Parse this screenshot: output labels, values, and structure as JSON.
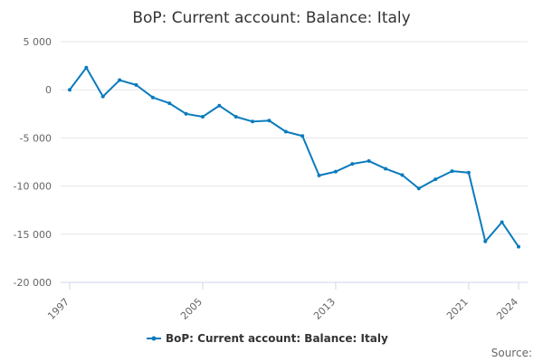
{
  "chart_data": {
    "type": "line",
    "title": "BoP: Current account: Balance: Italy",
    "xlabel": "",
    "ylabel": "",
    "x": [
      1997,
      1998,
      1999,
      2000,
      2001,
      2002,
      2003,
      2004,
      2005,
      2006,
      2007,
      2008,
      2009,
      2010,
      2011,
      2012,
      2013,
      2014,
      2015,
      2016,
      2017,
      2018,
      2019,
      2020,
      2021,
      2022,
      2023,
      2024
    ],
    "series": [
      {
        "name": "BoP: Current account: Balance: Italy",
        "color": "#0a7bbd",
        "values": [
          0,
          2300,
          -700,
          1000,
          500,
          -800,
          -1400,
          -2500,
          -2800,
          -1650,
          -2800,
          -3300,
          -3200,
          -4350,
          -4800,
          -8900,
          -8500,
          -7700,
          -7400,
          -8200,
          -8850,
          -10250,
          -9300,
          -8450,
          -8600,
          -15750,
          -13750,
          -16300
        ]
      }
    ],
    "x_ticks": [
      "1997",
      "2005",
      "2013",
      "2021",
      "2024"
    ],
    "y_ticks": [
      {
        "value": 5000,
        "label": "5 000"
      },
      {
        "value": 0,
        "label": "0"
      },
      {
        "value": -5000,
        "label": "-5 000"
      },
      {
        "value": -10000,
        "label": "-10 000"
      },
      {
        "value": -15000,
        "label": "-15 000"
      },
      {
        "value": -20000,
        "label": "-20 000"
      }
    ],
    "ylim": [
      -20000,
      5000
    ],
    "xlim": [
      1997,
      2024
    ],
    "grid": true,
    "legend_position": "bottom-center"
  },
  "footer": {
    "source_label": "Source:"
  }
}
